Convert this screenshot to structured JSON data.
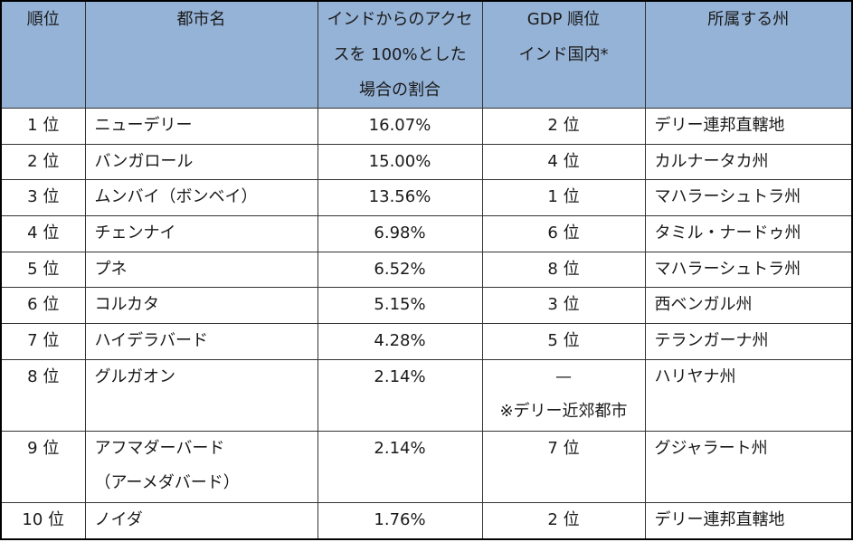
{
  "header": {
    "rank": "順位",
    "city": "都市名",
    "access_lines": [
      "インドからのアクセ",
      "スを 100%とした",
      "場合の割合"
    ],
    "gdp_lines": [
      "GDP 順位",
      "インド国内*"
    ],
    "state": "所属する州"
  },
  "rows": [
    {
      "rank": "1 位",
      "city": [
        "ニューデリー"
      ],
      "pct": "16.07%",
      "gdp": [
        "2 位"
      ],
      "state": "デリー連邦直轄地"
    },
    {
      "rank": "2 位",
      "city": [
        "バンガロール"
      ],
      "pct": "15.00%",
      "gdp": [
        "4 位"
      ],
      "state": "カルナータカ州"
    },
    {
      "rank": "3 位",
      "city": [
        "ムンバイ（ボンベイ）"
      ],
      "pct": "13.56%",
      "gdp": [
        "1 位"
      ],
      "state": "マハラーシュトラ州"
    },
    {
      "rank": "4 位",
      "city": [
        "チェンナイ"
      ],
      "pct": "6.98%",
      "gdp": [
        "6 位"
      ],
      "state": "タミル・ナードゥ州"
    },
    {
      "rank": "5 位",
      "city": [
        "プネ"
      ],
      "pct": "6.52%",
      "gdp": [
        "8 位"
      ],
      "state": "マハラーシュトラ州"
    },
    {
      "rank": "6 位",
      "city": [
        "コルカタ"
      ],
      "pct": "5.15%",
      "gdp": [
        "3 位"
      ],
      "state": "西ベンガル州"
    },
    {
      "rank": "7 位",
      "city": [
        "ハイデラバード"
      ],
      "pct": "4.28%",
      "gdp": [
        "5 位"
      ],
      "state": "テランガーナ州"
    },
    {
      "rank": "8 位",
      "city": [
        "グルガオン"
      ],
      "pct": "2.14%",
      "gdp": [
        "—",
        "※デリー近郊都市"
      ],
      "state": "ハリヤナ州"
    },
    {
      "rank": "9 位",
      "city": [
        "アフマダーバード",
        "（アーメダバード）"
      ],
      "pct": "2.14%",
      "gdp": [
        "7 位"
      ],
      "state": "グジャラート州"
    },
    {
      "rank": "10 位",
      "city": [
        "ノイダ"
      ],
      "pct": "1.76%",
      "gdp": [
        "2 位"
      ],
      "state": "デリー連邦直轄地"
    }
  ],
  "colors": {
    "header_bg": "#95b3d7",
    "border": "#333333"
  }
}
